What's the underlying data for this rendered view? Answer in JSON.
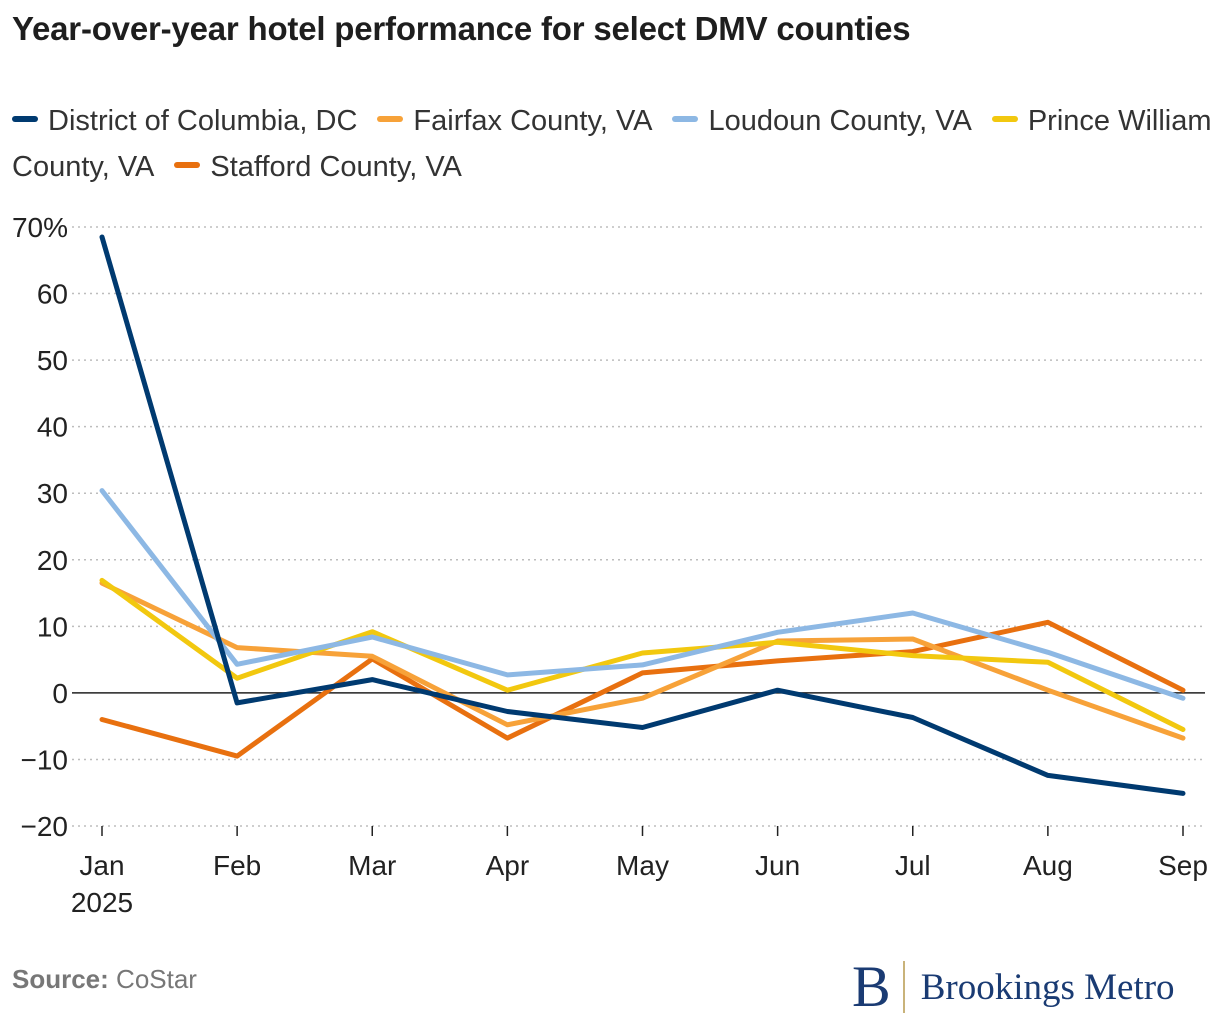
{
  "title": "Year-over-year hotel performance for select DMV counties",
  "source": {
    "label": "Source:",
    "text": "CoStar"
  },
  "brand": {
    "mark": "B",
    "name": "Brookings Metro"
  },
  "chart_data": {
    "type": "line",
    "title": "Year-over-year hotel performance for select DMV counties",
    "categories": [
      "Jan",
      "Feb",
      "Mar",
      "Apr",
      "May",
      "Jun",
      "Jul",
      "Aug",
      "Sep"
    ],
    "x_tick_labels": [
      "Jan\n2025",
      "Feb",
      "Mar",
      "Apr",
      "May",
      "Jun",
      "Jul",
      "Aug",
      "Sep"
    ],
    "y_ticks": [
      -20,
      -10,
      0,
      10,
      20,
      30,
      40,
      50,
      60,
      70
    ],
    "y_tick_labels": [
      "−20",
      "−10",
      "0",
      "10",
      "20",
      "30",
      "40",
      "50",
      "60",
      "70%"
    ],
    "ylim": [
      -20,
      70
    ],
    "grid": true,
    "legend_position": "top",
    "series": [
      {
        "name": "District of Columbia, DC",
        "color": "#003a70",
        "values": [
          68.5,
          -1.5,
          2.0,
          -2.8,
          -5.2,
          0.4,
          -3.7,
          -12.4,
          -15.1
        ]
      },
      {
        "name": "Fairfax County, VA",
        "color": "#f7a239",
        "values": [
          16.5,
          6.8,
          5.5,
          -4.8,
          -0.8,
          7.8,
          8.1,
          0.4,
          -6.8
        ]
      },
      {
        "name": "Loudoun County, VA",
        "color": "#8db8e4",
        "values": [
          30.4,
          4.3,
          8.4,
          2.7,
          4.2,
          9.1,
          12.0,
          6.1,
          -0.8
        ]
      },
      {
        "name": "Prince William County, VA",
        "color": "#f2c80f",
        "values": [
          16.9,
          2.2,
          9.2,
          0.4,
          6.0,
          7.6,
          5.6,
          4.6,
          -5.5
        ]
      },
      {
        "name": "Stafford County, VA",
        "color": "#e8700f",
        "values": [
          -4.0,
          -9.5,
          5.1,
          -6.8,
          3.0,
          4.8,
          6.2,
          10.6,
          0.4
        ]
      }
    ]
  }
}
